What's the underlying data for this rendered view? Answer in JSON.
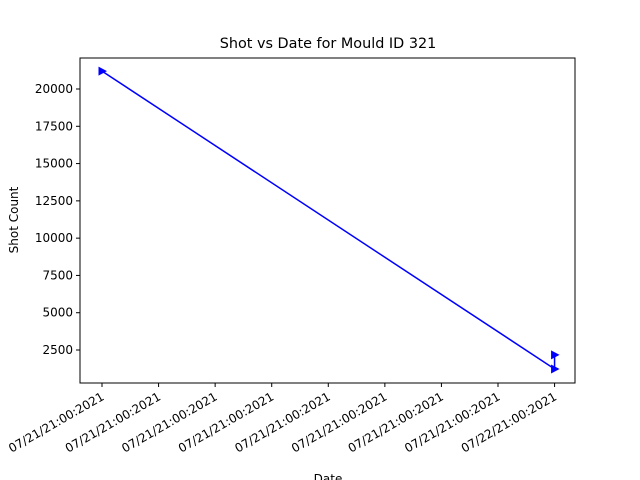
{
  "chart_data": {
    "type": "line",
    "title": "Shot vs Date for Mould ID 321",
    "xlabel": "Date",
    "ylabel": "Shot Count",
    "x": [
      "2021-07-21T00:00",
      "2021-07-22T00:00",
      "2021-07-22T00:00"
    ],
    "series": [
      {
        "name": "Shot Count",
        "color": "#0000ff",
        "marker": "triangle-right",
        "values": [
          21200,
          1230,
          2170
        ]
      }
    ],
    "xlim": [
      "2021-07-20T22:50",
      "2021-07-22T01:05"
    ],
    "xticks": [
      {
        "value": "2021-07-21T00:00",
        "label": "07/21/21:00:2021"
      },
      {
        "value": "2021-07-21T03:00",
        "label": "07/21/21:00:2021"
      },
      {
        "value": "2021-07-21T06:00",
        "label": "07/21/21:00:2021"
      },
      {
        "value": "2021-07-21T09:00",
        "label": "07/21/21:00:2021"
      },
      {
        "value": "2021-07-21T12:00",
        "label": "07/21/21:00:2021"
      },
      {
        "value": "2021-07-21T15:00",
        "label": "07/21/21:00:2021"
      },
      {
        "value": "2021-07-21T18:00",
        "label": "07/21/21:00:2021"
      },
      {
        "value": "2021-07-21T21:00",
        "label": "07/21/21:00:2021"
      },
      {
        "value": "2021-07-22T00:00",
        "label": "07/22/21:00:2021"
      }
    ],
    "ylim": [
      288,
      22078
    ],
    "yticks": [
      2500,
      5000,
      7500,
      10000,
      12500,
      15000,
      17500,
      20000
    ],
    "grid": false
  }
}
